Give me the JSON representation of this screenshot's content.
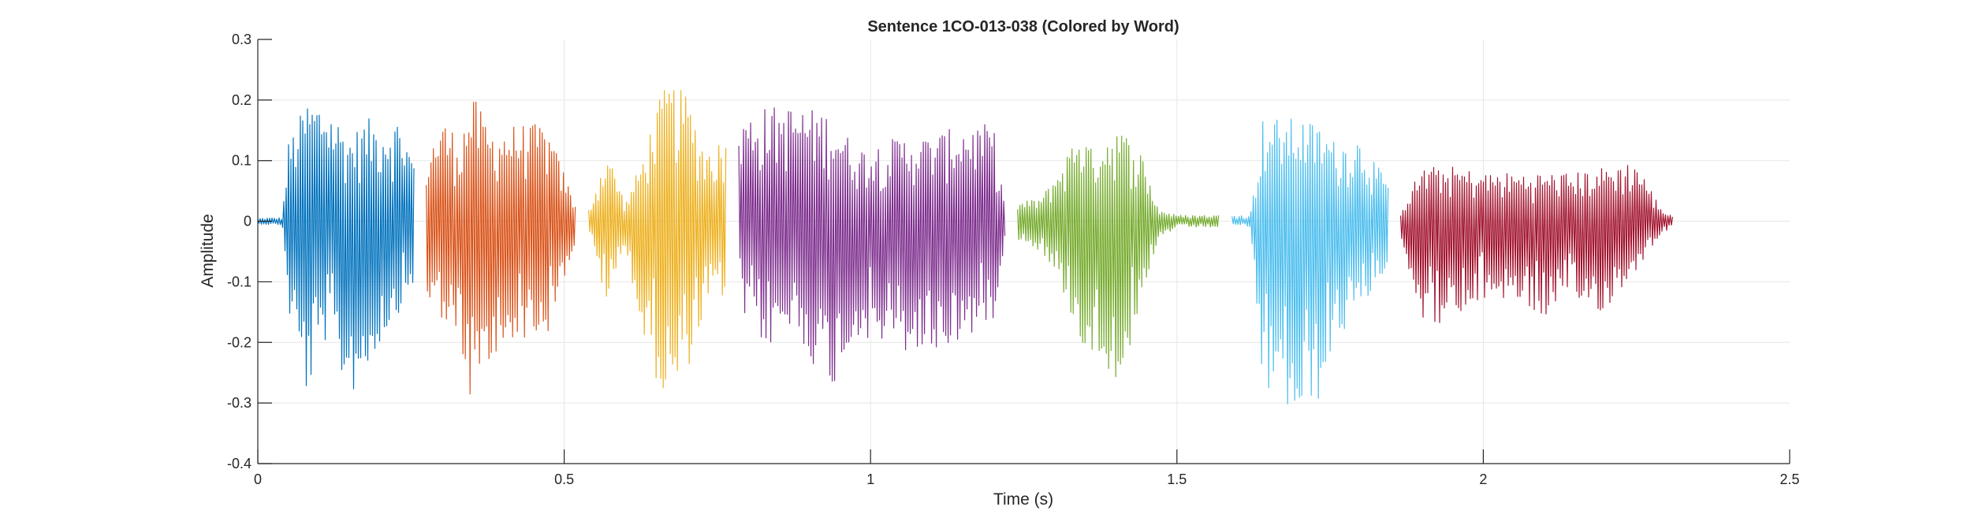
{
  "chart_data": {
    "type": "line",
    "title": "Sentence 1CO-013-038 (Colored by Word)",
    "xlabel": "Time (s)",
    "ylabel": "Amplitude",
    "xlim": [
      0,
      2.5
    ],
    "ylim": [
      -0.4,
      0.3
    ],
    "xticks": [
      0,
      0.5,
      1,
      1.5,
      2,
      2.5
    ],
    "xtick_labels": [
      "0",
      "0.5",
      "1",
      "1.5",
      "2",
      "2.5"
    ],
    "yticks": [
      -0.4,
      -0.3,
      -0.2,
      -0.1,
      0,
      0.1,
      0.2,
      0.3
    ],
    "ytick_labels": [
      "-0.4",
      "-0.3",
      "-0.2",
      "-0.1",
      "0",
      "0.1",
      "0.2",
      "0.3"
    ],
    "grid": true,
    "segments": [
      {
        "color": "#0072BD",
        "t_start": 0.0,
        "t_end": 0.255,
        "env_t": [
          0.0,
          0.04,
          0.05,
          0.08,
          0.11,
          0.15,
          0.18,
          0.2,
          0.23,
          0.255
        ],
        "env_max": [
          0.005,
          0.006,
          0.13,
          0.2,
          0.2,
          0.14,
          0.17,
          0.16,
          0.17,
          0.1
        ],
        "env_min": [
          -0.005,
          -0.006,
          -0.15,
          -0.29,
          -0.2,
          -0.29,
          -0.25,
          -0.2,
          -0.15,
          -0.1
        ]
      },
      {
        "color": "#D95319",
        "t_start": 0.275,
        "t_end": 0.52,
        "env_t": [
          0.275,
          0.3,
          0.33,
          0.35,
          0.38,
          0.42,
          0.47,
          0.5,
          0.52
        ],
        "env_max": [
          0.11,
          0.17,
          0.14,
          0.21,
          0.15,
          0.16,
          0.16,
          0.08,
          0.02
        ],
        "env_min": [
          -0.14,
          -0.16,
          -0.22,
          -0.31,
          -0.25,
          -0.19,
          -0.2,
          -0.1,
          -0.03
        ]
      },
      {
        "color": "#EDB120",
        "t_start": 0.54,
        "t_end": 0.765,
        "env_t": [
          0.54,
          0.57,
          0.6,
          0.63,
          0.65,
          0.67,
          0.7,
          0.73,
          0.765
        ],
        "env_max": [
          0.02,
          0.12,
          0.03,
          0.11,
          0.19,
          0.23,
          0.21,
          0.12,
          0.14
        ],
        "env_min": [
          -0.02,
          -0.14,
          -0.04,
          -0.21,
          -0.26,
          -0.32,
          -0.25,
          -0.15,
          -0.12
        ]
      },
      {
        "color": "#7E2F8E",
        "t_start": 0.785,
        "t_end": 1.22,
        "env_t": [
          0.785,
          0.83,
          0.88,
          0.93,
          0.98,
          1.05,
          1.1,
          1.15,
          1.2,
          1.22
        ],
        "env_max": [
          0.17,
          0.19,
          0.19,
          0.18,
          0.12,
          0.14,
          0.14,
          0.16,
          0.16,
          0.02
        ],
        "env_min": [
          -0.15,
          -0.21,
          -0.18,
          -0.29,
          -0.19,
          -0.22,
          -0.22,
          -0.2,
          -0.16,
          -0.03
        ]
      },
      {
        "color": "#77AC30",
        "t_start": 1.24,
        "t_end": 1.57,
        "env_t": [
          1.24,
          1.28,
          1.32,
          1.34,
          1.36,
          1.4,
          1.44,
          1.47,
          1.5,
          1.57
        ],
        "env_max": [
          0.03,
          0.04,
          0.11,
          0.16,
          0.12,
          0.16,
          0.12,
          0.02,
          0.01,
          0.01
        ],
        "env_min": [
          -0.03,
          -0.05,
          -0.13,
          -0.2,
          -0.22,
          -0.26,
          -0.18,
          -0.03,
          -0.01,
          -0.01
        ]
      },
      {
        "color": "#4DBEEE",
        "t_start": 1.59,
        "t_end": 1.845,
        "env_t": [
          1.59,
          1.62,
          1.64,
          1.67,
          1.7,
          1.73,
          1.76,
          1.8,
          1.845
        ],
        "env_max": [
          0.01,
          0.01,
          0.17,
          0.17,
          0.17,
          0.16,
          0.13,
          0.14,
          0.06
        ],
        "env_min": [
          -0.01,
          -0.01,
          -0.28,
          -0.3,
          -0.34,
          -0.3,
          -0.2,
          -0.15,
          -0.07
        ]
      },
      {
        "color": "#A2142F",
        "t_start": 1.865,
        "t_end": 2.31,
        "env_t": [
          1.865,
          1.9,
          1.95,
          2.0,
          2.05,
          2.1,
          2.15,
          2.2,
          2.25,
          2.29,
          2.31
        ],
        "env_max": [
          0.02,
          0.09,
          0.09,
          0.08,
          0.08,
          0.08,
          0.08,
          0.09,
          0.1,
          0.02,
          0.01
        ],
        "env_min": [
          -0.03,
          -0.16,
          -0.18,
          -0.13,
          -0.13,
          -0.16,
          -0.14,
          -0.15,
          -0.08,
          -0.02,
          -0.01
        ]
      }
    ]
  }
}
